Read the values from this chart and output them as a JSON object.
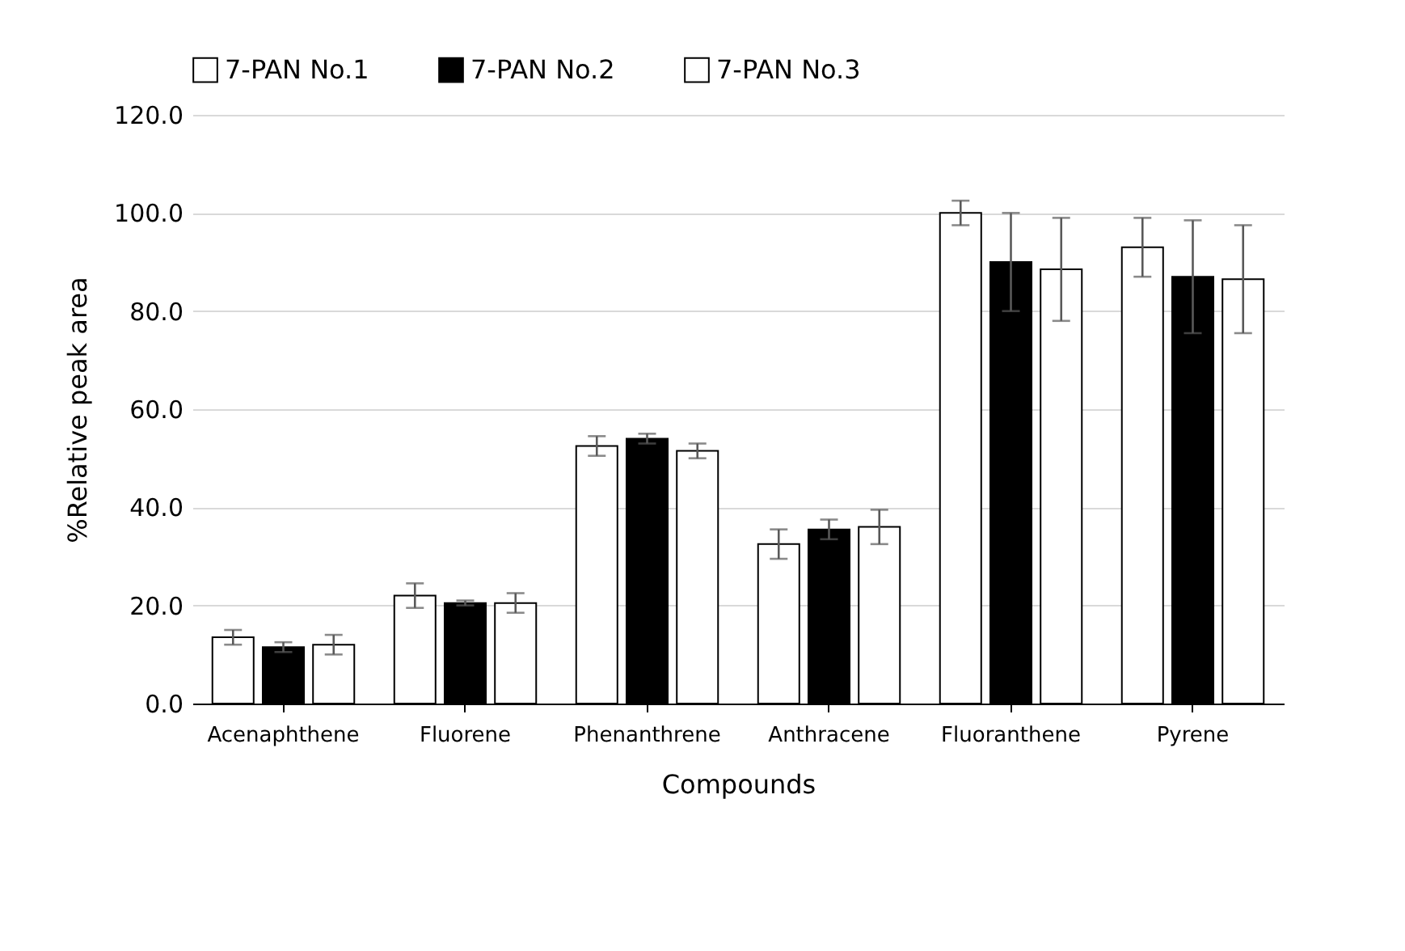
{
  "chart_data": {
    "type": "bar",
    "xlabel": "Compounds",
    "ylabel": "%Relative peak area",
    "categories": [
      "Acenaphthene",
      "Fluorene",
      "Phenanthrene",
      "Anthracene",
      "Fluoranthene",
      "Pyrene"
    ],
    "series": [
      {
        "name": "7-PAN No.1",
        "color": "#ffffff",
        "values": [
          13.5,
          22,
          52.5,
          32.5,
          100,
          93
        ],
        "errors": [
          1.5,
          2.5,
          2,
          3,
          2.5,
          6
        ]
      },
      {
        "name": "7-PAN No.2",
        "color": "#000000",
        "values": [
          11.5,
          20.5,
          54,
          35.5,
          90,
          87
        ],
        "errors": [
          1,
          0.5,
          1,
          2,
          10,
          11.5
        ]
      },
      {
        "name": "7-PAN No.3",
        "color": "#ffffff",
        "values": [
          12,
          20.5,
          51.5,
          36,
          88.5,
          86.5
        ],
        "errors": [
          2,
          2,
          1.5,
          3.5,
          10.5,
          11
        ]
      }
    ],
    "ylim": [
      0,
      120
    ],
    "yticks": [
      {
        "value": 0,
        "label": "0.0"
      },
      {
        "value": 20,
        "label": "20.0"
      },
      {
        "value": 40,
        "label": "40.0"
      },
      {
        "value": 60,
        "label": "60.0"
      },
      {
        "value": 80,
        "label": "80.0"
      },
      {
        "value": 100,
        "label": "100.0"
      },
      {
        "value": 120,
        "label": "120.0"
      }
    ],
    "grid": "y",
    "legend": "top"
  }
}
